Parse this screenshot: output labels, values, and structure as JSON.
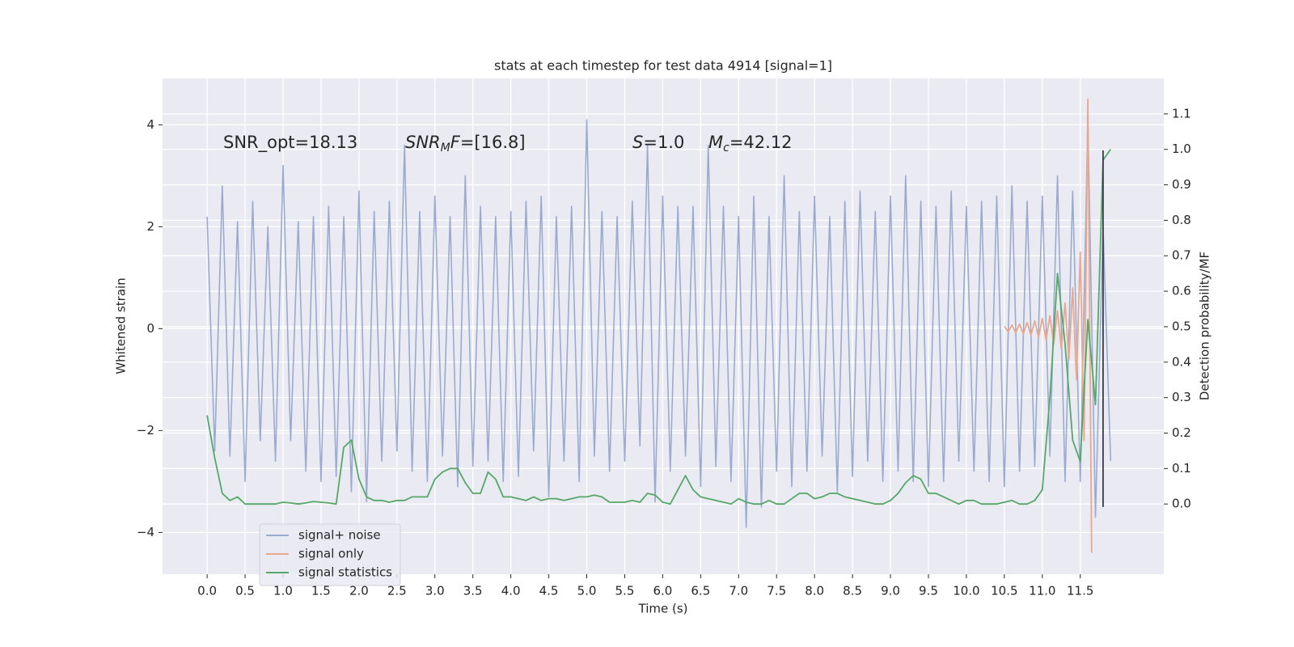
{
  "chart_data": {
    "type": "line",
    "title": "stats at each timestep for test data 4914 [signal=1]",
    "xlabel": "Time (s)",
    "ylabel": "Whitened strain",
    "y2label": "Detection probability/MF",
    "xlim": [
      -0.587,
      12.6
    ],
    "ylim": [
      -4.82,
      4.91
    ],
    "y2lim": [
      -0.198,
      1.2
    ],
    "xticks": [
      {
        "value": 0,
        "label": "0.0"
      },
      {
        "value": 0.5,
        "label": "0.5"
      },
      {
        "value": 1,
        "label": "1.0"
      },
      {
        "value": 1.5,
        "label": "1.5"
      },
      {
        "value": 2,
        "label": "2.0"
      },
      {
        "value": 2.5,
        "label": "2.5"
      },
      {
        "value": 3,
        "label": "3.0"
      },
      {
        "value": 3.5,
        "label": "3.5"
      },
      {
        "value": 4,
        "label": "4.0"
      },
      {
        "value": 4.5,
        "label": "4.5"
      },
      {
        "value": 5,
        "label": "5.0"
      },
      {
        "value": 5.5,
        "label": "5.5"
      },
      {
        "value": 6,
        "label": "6.0"
      },
      {
        "value": 6.5,
        "label": "6.5"
      },
      {
        "value": 7,
        "label": "7.0"
      },
      {
        "value": 7.5,
        "label": "7.5"
      },
      {
        "value": 8,
        "label": "8.0"
      },
      {
        "value": 8.5,
        "label": "8.5"
      },
      {
        "value": 9,
        "label": "9.0"
      },
      {
        "value": 9.5,
        "label": "9.5"
      },
      {
        "value": 10,
        "label": "10.0"
      },
      {
        "value": 10.5,
        "label": "10.5"
      },
      {
        "value": 11,
        "label": "11.0"
      },
      {
        "value": 11.5,
        "label": "11.5"
      }
    ],
    "yticks": [
      {
        "value": -4,
        "label": "−4"
      },
      {
        "value": -2,
        "label": "−2"
      },
      0,
      2,
      4
    ],
    "y2ticks": [
      {
        "value": 0,
        "label": "0.0"
      },
      0.1,
      0.2,
      0.3,
      0.4,
      0.5,
      0.6,
      0.7,
      0.8,
      0.9,
      {
        "value": 1,
        "label": "1.0"
      },
      1.1
    ],
    "grid": true,
    "background": "#eaeaf2",
    "legend": "lower left",
    "annotations": [
      {
        "text": "SNR_opt=18.13",
        "italic": false
      },
      {
        "text": "SNR",
        "sub": "M",
        "tail": "F=[16.8]",
        "italic": true
      },
      {
        "text": "S",
        "tail": "=1.0",
        "italic": true
      },
      {
        "text": "M",
        "sub": "c",
        "tail": "=42.12",
        "italic": true
      }
    ],
    "x": [
      0,
      0.1,
      0.2,
      0.3,
      0.4,
      0.5,
      0.6,
      0.7,
      0.8,
      0.9,
      1,
      1.1,
      1.2,
      1.3,
      1.4,
      1.5,
      1.6,
      1.7,
      1.8,
      1.9,
      2,
      2.1,
      2.2,
      2.3,
      2.4,
      2.5,
      2.6,
      2.7,
      2.8,
      2.9,
      3,
      3.1,
      3.2,
      3.3,
      3.4,
      3.5,
      3.6,
      3.7,
      3.8,
      3.9,
      4,
      4.1,
      4.2,
      4.3,
      4.4,
      4.5,
      4.6,
      4.7,
      4.8,
      4.9,
      5,
      5.1,
      5.2,
      5.3,
      5.4,
      5.5,
      5.6,
      5.7,
      5.8,
      5.9,
      6,
      6.1,
      6.2,
      6.3,
      6.4,
      6.5,
      6.6,
      6.7,
      6.8,
      6.9,
      7,
      7.1,
      7.2,
      7.3,
      7.4,
      7.5,
      7.6,
      7.7,
      7.8,
      7.9,
      8,
      8.1,
      8.2,
      8.3,
      8.4,
      8.5,
      8.6,
      8.7,
      8.8,
      8.9,
      9,
      9.1,
      9.2,
      9.3,
      9.4,
      9.5,
      9.6,
      9.7,
      9.8,
      9.9,
      10,
      10.1,
      10.2,
      10.3,
      10.4,
      10.5,
      10.6,
      10.7,
      10.8,
      10.9,
      11,
      11.1,
      11.2,
      11.3,
      11.4,
      11.5,
      11.6,
      11.7,
      11.8,
      11.9
    ],
    "series": [
      {
        "name": "signal+ noise",
        "color": "#9aabd0",
        "values": [
          2.2,
          -2.4,
          2.8,
          -2.5,
          2.1,
          -3.0,
          2.5,
          -2.2,
          2.0,
          -2.6,
          3.2,
          -2.2,
          2.1,
          -2.8,
          2.2,
          -3.0,
          2.4,
          -2.9,
          2.2,
          -3.2,
          2.7,
          -3.4,
          2.3,
          -2.6,
          2.5,
          -2.4,
          3.6,
          -2.8,
          2.3,
          -3.0,
          2.6,
          -2.5,
          2.2,
          -3.1,
          3.0,
          -2.7,
          2.4,
          -2.6,
          2.2,
          -3.0,
          2.3,
          -2.9,
          2.5,
          -2.4,
          2.6,
          -3.3,
          2.2,
          -2.6,
          2.4,
          -3.0,
          4.1,
          -2.5,
          2.3,
          -2.8,
          2.2,
          -2.6,
          2.5,
          -2.3,
          3.6,
          -3.4,
          2.6,
          -2.8,
          2.4,
          -2.5,
          2.4,
          -3.1,
          3.6,
          -2.7,
          2.4,
          -3.0,
          2.2,
          -3.9,
          2.6,
          -3.5,
          2.2,
          -2.8,
          3.0,
          -3.1,
          2.3,
          -2.8,
          2.6,
          -2.5,
          2.2,
          -3.2,
          2.5,
          -2.9,
          2.7,
          -2.6,
          2.3,
          -3.0,
          2.6,
          -2.8,
          3.0,
          -3.0,
          2.5,
          -3.1,
          2.4,
          -3.0,
          2.7,
          -2.6,
          2.4,
          -2.8,
          2.5,
          -3.0,
          2.6,
          -3.1,
          2.8,
          -2.8,
          2.5,
          -2.7,
          2.6,
          -2.5,
          3.0,
          -3.0,
          2.7,
          -3.0,
          4.1,
          -3.7,
          2.0,
          -2.6
        ]
      },
      {
        "name": "signal only",
        "color": "#e8a88f",
        "x": [
          10.5,
          10.55,
          10.6,
          10.65,
          10.7,
          10.75,
          10.8,
          10.85,
          10.9,
          10.95,
          11,
          11.05,
          11.1,
          11.15,
          11.2,
          11.25,
          11.3,
          11.35,
          11.4,
          11.45,
          11.5,
          11.55,
          11.6,
          11.65
        ],
        "values": [
          0.05,
          -0.06,
          0.07,
          -0.08,
          0.09,
          -0.1,
          0.12,
          -0.13,
          0.15,
          -0.17,
          0.2,
          -0.22,
          0.25,
          -0.3,
          0.35,
          -0.4,
          0.5,
          -0.6,
          0.8,
          -1.0,
          1.5,
          -2.2,
          4.5,
          -4.4
        ]
      },
      {
        "name": "signal statistics",
        "color": "#55a868",
        "axis": "y2",
        "values": [
          0.25,
          0.13,
          0.03,
          0.01,
          0.02,
          0,
          0,
          0,
          0,
          0,
          0.005,
          0.003,
          0,
          0.003,
          0.007,
          0.005,
          0.003,
          0,
          0.16,
          0.18,
          0.07,
          0.02,
          0.01,
          0.01,
          0.005,
          0.01,
          0.01,
          0.02,
          0.02,
          0.02,
          0.07,
          0.09,
          0.1,
          0.1,
          0.06,
          0.03,
          0.03,
          0.09,
          0.07,
          0.02,
          0.02,
          0.015,
          0.01,
          0.02,
          0.01,
          0.015,
          0.015,
          0.01,
          0.015,
          0.02,
          0.02,
          0.025,
          0.02,
          0.005,
          0.005,
          0.005,
          0.01,
          0.005,
          0.03,
          0.025,
          0.005,
          0,
          0.04,
          0.08,
          0.04,
          0.02,
          0.015,
          0.01,
          0.005,
          0,
          0.015,
          0.005,
          0,
          0,
          0.01,
          0,
          0,
          0.015,
          0.03,
          0.03,
          0.015,
          0.02,
          0.03,
          0.03,
          0.02,
          0.015,
          0.01,
          0.005,
          0,
          0,
          0.01,
          0.03,
          0.06,
          0.08,
          0.07,
          0.03,
          0.03,
          0.02,
          0.01,
          0,
          0.01,
          0.01,
          0,
          0,
          0,
          0.005,
          0.01,
          0,
          0,
          0.01,
          0.04,
          0.3,
          0.65,
          0.45,
          0.18,
          0.12,
          0.52,
          0.28,
          0.97,
          1.0
        ]
      },
      {
        "color": "#3a3a48",
        "x": [
          11.8,
          11.8
        ],
        "values": [
          -3.5,
          3.5
        ]
      }
    ]
  }
}
